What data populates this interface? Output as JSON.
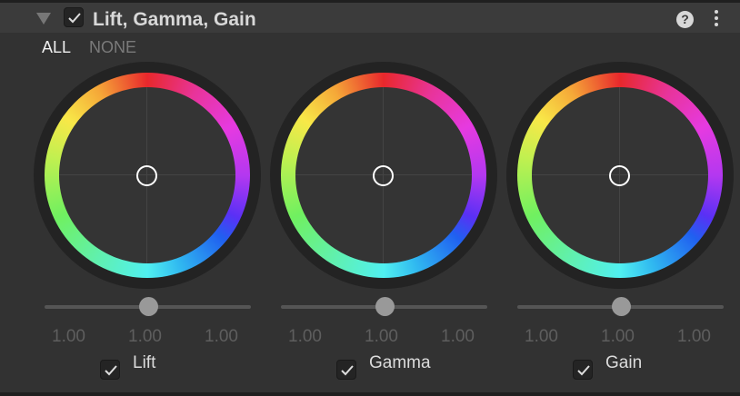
{
  "header": {
    "title": "Lift, Gamma, Gain",
    "enabled": true,
    "help_icon": "?"
  },
  "selectors": {
    "all": "ALL",
    "none": "NONE"
  },
  "wheels": [
    {
      "label": "Lift",
      "enabled": true,
      "values": [
        "1.00",
        "1.00",
        "1.00"
      ],
      "slider": 0.5
    },
    {
      "label": "Gamma",
      "enabled": true,
      "values": [
        "1.00",
        "1.00",
        "1.00"
      ],
      "slider": 0.5
    },
    {
      "label": "Gain",
      "enabled": true,
      "values": [
        "1.00",
        "1.00",
        "1.00"
      ],
      "slider": 0.5
    }
  ]
}
